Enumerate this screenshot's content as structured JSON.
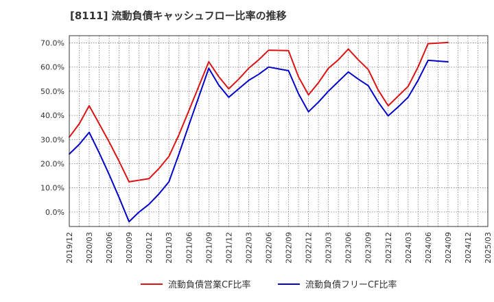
{
  "chart_data": {
    "type": "line",
    "title": "[8111]  流動負債キャッシュフロー比率の推移",
    "xlabel": "",
    "ylabel": "",
    "ylim": [
      -6,
      73
    ],
    "yticks": [
      0,
      10,
      20,
      30,
      40,
      50,
      60,
      70
    ],
    "ytick_labels": [
      "0.0%",
      "10.0%",
      "20.0%",
      "30.0%",
      "40.0%",
      "50.0%",
      "60.0%",
      "70.0%"
    ],
    "categories": [
      "2019/12",
      "2020/03",
      "2020/06",
      "2020/09",
      "2020/12",
      "2021/03",
      "2021/06",
      "2021/09",
      "2021/12",
      "2022/03",
      "2022/06",
      "2022/09",
      "2022/12",
      "2023/03",
      "2023/06",
      "2023/09",
      "2023/12",
      "2024/03",
      "2024/06",
      "2024/09",
      "2024/12",
      "2025/03"
    ],
    "grid": true,
    "legend_position": "bottom",
    "series": [
      {
        "name": "流動負債営業CF比率",
        "color": "#dd1111",
        "points": [
          [
            0,
            31.0
          ],
          [
            0.5,
            36.5
          ],
          [
            1,
            44.0
          ],
          [
            1.5,
            36.5
          ],
          [
            2,
            29.0
          ],
          [
            2.5,
            21.0
          ],
          [
            3,
            12.5
          ],
          [
            4,
            13.8
          ],
          [
            4.5,
            18.0
          ],
          [
            5,
            23.0
          ],
          [
            5.5,
            32.0
          ],
          [
            6,
            42.0
          ],
          [
            7,
            62.2
          ],
          [
            7.5,
            56.0
          ],
          [
            8,
            51.0
          ],
          [
            8.5,
            55.0
          ],
          [
            9,
            59.5
          ],
          [
            9.5,
            63.0
          ],
          [
            10,
            67.0
          ],
          [
            11,
            66.8
          ],
          [
            11.5,
            56.0
          ],
          [
            12,
            48.5
          ],
          [
            12.5,
            53.5
          ],
          [
            13,
            59.5
          ],
          [
            13.5,
            63.0
          ],
          [
            14,
            67.5
          ],
          [
            14.5,
            63.0
          ],
          [
            15,
            59.0
          ],
          [
            15.5,
            50.5
          ],
          [
            16,
            44.0
          ],
          [
            16.5,
            48.0
          ],
          [
            17,
            52.0
          ],
          [
            17.5,
            60.0
          ],
          [
            18,
            69.7
          ],
          [
            19,
            70.2
          ]
        ]
      },
      {
        "name": "流動負債フリーCF比率",
        "color": "#0000cc",
        "points": [
          [
            0,
            24.0
          ],
          [
            0.5,
            28.0
          ],
          [
            1,
            33.0
          ],
          [
            1.5,
            24.5
          ],
          [
            2,
            15.5
          ],
          [
            2.5,
            6.0
          ],
          [
            3,
            -4.0
          ],
          [
            3.5,
            0.0
          ],
          [
            4,
            3.2
          ],
          [
            4.5,
            7.5
          ],
          [
            5,
            12.5
          ],
          [
            5.5,
            24.0
          ],
          [
            6,
            36.0
          ],
          [
            7,
            59.5
          ],
          [
            7.5,
            52.5
          ],
          [
            8,
            47.5
          ],
          [
            8.5,
            51.0
          ],
          [
            9,
            54.5
          ],
          [
            9.5,
            57.0
          ],
          [
            10,
            60.0
          ],
          [
            11,
            58.5
          ],
          [
            11.5,
            49.0
          ],
          [
            12,
            41.5
          ],
          [
            12.5,
            45.5
          ],
          [
            13,
            50.0
          ],
          [
            13.5,
            54.0
          ],
          [
            14,
            58.0
          ],
          [
            14.5,
            55.0
          ],
          [
            15,
            52.3
          ],
          [
            15.5,
            45.5
          ],
          [
            16,
            39.8
          ],
          [
            16.5,
            43.5
          ],
          [
            17,
            47.5
          ],
          [
            17.5,
            54.5
          ],
          [
            18,
            62.8
          ],
          [
            19,
            62.2
          ]
        ]
      }
    ]
  }
}
